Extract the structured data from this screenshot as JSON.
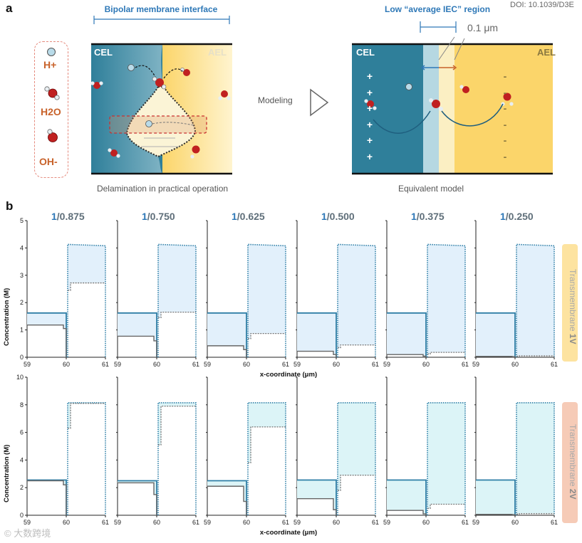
{
  "panel_a": {
    "letter": "a",
    "doi": "DOI: 10.1039/D3E",
    "legend": {
      "h_plus": "H+",
      "h2o": "H2O",
      "oh_minus": "OH-"
    },
    "left_diagram": {
      "title": "Bipolar membrane interface",
      "cel_label": "CEL",
      "ael_label": "AEL",
      "caption": "Delamination in practical operation"
    },
    "modeling_label": "Modeling",
    "right_diagram": {
      "title": "Low “average IEC” region",
      "thickness_label": "0.1 μm",
      "cel_label": "CEL",
      "ael_label": "AEL",
      "plus_signs": [
        "+",
        "+",
        "+",
        "+",
        "+",
        "+"
      ],
      "minus_signs": [
        "-",
        "-",
        "-",
        "-",
        "-",
        "-"
      ],
      "caption": "Equivalent model"
    }
  },
  "panel_b": {
    "letter": "b",
    "ratios": [
      "1/0.875",
      "1/0.750",
      "1/0.625",
      "1/0.500",
      "1/0.375",
      "1/0.250"
    ],
    "row_labels": [
      "Transmembrane 1V",
      "Transmembrane 2V"
    ],
    "y_title": "Concentration (M)",
    "x_title": "x-coordinate (μm)",
    "colors": {
      "cel_line": "#2e7ea6",
      "ael_line": "#2e7ea6",
      "fill_row1": "#e2f0fb",
      "fill_row2": "#dcf4f7",
      "tab_row1": "#fde3a0",
      "tab_row2": "#f6cbb7"
    }
  },
  "chart_data": [
    {
      "type": "line",
      "title": "Transmembrane 1V",
      "xlabel": "x-coordinate (μm)",
      "ylabel": "Concentration (M)",
      "xlim": [
        59,
        61
      ],
      "ylim": [
        0,
        5
      ],
      "x_ticks": [
        59,
        60,
        61
      ],
      "y_ticks": [
        0,
        1,
        2,
        3,
        4,
        5
      ],
      "subplots": [
        {
          "label": "1/0.875",
          "cel_top": 1.62,
          "cel_bottom": 1.18,
          "cel_bottom_end": 1.05,
          "ael_top_start": 4.13,
          "ael_top_end": 4.08,
          "ael_bottom": 2.72,
          "ael_bottom_start": 2.45
        },
        {
          "label": "1/0.750",
          "cel_top": 1.62,
          "cel_bottom": 0.77,
          "cel_bottom_end": 0.6,
          "ael_top_start": 4.13,
          "ael_top_end": 4.08,
          "ael_bottom": 1.65,
          "ael_bottom_start": 1.45
        },
        {
          "label": "1/0.625",
          "cel_top": 1.62,
          "cel_bottom": 0.42,
          "cel_bottom_end": 0.28,
          "ael_top_start": 4.13,
          "ael_top_end": 4.08,
          "ael_bottom": 0.87,
          "ael_bottom_start": 0.68
        },
        {
          "label": "1/0.500",
          "cel_top": 1.62,
          "cel_bottom": 0.22,
          "cel_bottom_end": 0.1,
          "ael_top_start": 4.13,
          "ael_top_end": 4.08,
          "ael_bottom": 0.45,
          "ael_bottom_start": 0.35
        },
        {
          "label": "1/0.375",
          "cel_top": 1.62,
          "cel_bottom": 0.1,
          "cel_bottom_end": 0.04,
          "ael_top_start": 4.13,
          "ael_top_end": 4.08,
          "ael_bottom": 0.18,
          "ael_bottom_start": 0.12
        },
        {
          "label": "1/0.250",
          "cel_top": 1.62,
          "cel_bottom": 0.03,
          "cel_bottom_end": 0.02,
          "ael_top_start": 4.13,
          "ael_top_end": 4.08,
          "ael_bottom": 0.05,
          "ael_bottom_start": 0.04
        }
      ]
    },
    {
      "type": "line",
      "title": "Transmembrane 2V",
      "xlabel": "x-coordinate (μm)",
      "ylabel": "Concentration (M)",
      "xlim": [
        59,
        61
      ],
      "ylim": [
        0,
        10
      ],
      "x_ticks": [
        59,
        60,
        61
      ],
      "y_ticks": [
        0,
        2,
        4,
        6,
        8,
        10
      ],
      "subplots": [
        {
          "label": "1/0.875",
          "cel_top": 2.55,
          "cel_bottom": 2.5,
          "cel_bottom_end": 2.2,
          "ael_top_start": 8.15,
          "ael_top_end": 8.15,
          "ael_bottom": 8.1,
          "ael_bottom_start": 6.3
        },
        {
          "label": "1/0.750",
          "cel_top": 2.5,
          "cel_bottom": 2.35,
          "cel_bottom_end": 1.5,
          "ael_top_start": 8.15,
          "ael_top_end": 8.15,
          "ael_bottom": 7.9,
          "ael_bottom_start": 5.1
        },
        {
          "label": "1/0.625",
          "cel_top": 2.5,
          "cel_bottom": 2.1,
          "cel_bottom_end": 1.0,
          "ael_top_start": 8.15,
          "ael_top_end": 8.15,
          "ael_bottom": 6.4,
          "ael_bottom_start": 3.8
        },
        {
          "label": "1/0.500",
          "cel_top": 2.55,
          "cel_bottom": 1.2,
          "cel_bottom_end": 0.4,
          "ael_top_start": 8.15,
          "ael_top_end": 8.15,
          "ael_bottom": 2.9,
          "ael_bottom_start": 1.8
        },
        {
          "label": "1/0.375",
          "cel_top": 2.55,
          "cel_bottom": 0.35,
          "cel_bottom_end": 0.1,
          "ael_top_start": 8.15,
          "ael_top_end": 8.15,
          "ael_bottom": 0.8,
          "ael_bottom_start": 0.5
        },
        {
          "label": "1/0.250",
          "cel_top": 2.55,
          "cel_bottom": 0.06,
          "cel_bottom_end": 0.04,
          "ael_top_start": 8.15,
          "ael_top_end": 8.15,
          "ael_bottom": 0.12,
          "ael_bottom_start": 0.08
        }
      ]
    }
  ],
  "watermark": "© 大数跨境"
}
